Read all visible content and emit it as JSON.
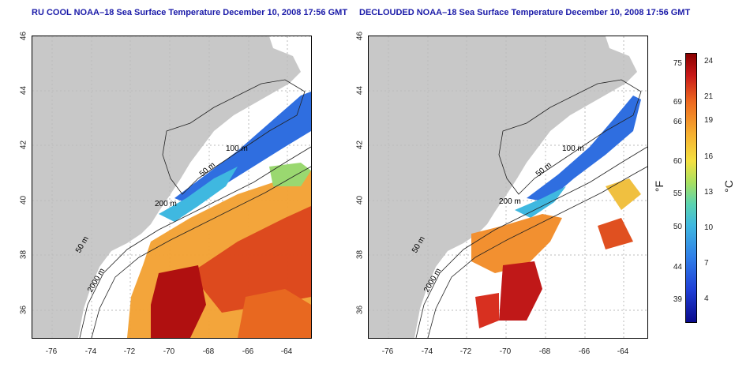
{
  "left_map": {
    "title": "RU COOL NOAA–18 Sea Surface Temperature December 10, 2008 17:56 GMT"
  },
  "right_map": {
    "title": "DECLOUDED NOAA–18 Sea Surface Temperature December 10, 2008 17:56 GMT"
  },
  "axes": {
    "lat_ticks": [
      "46",
      "44",
      "42",
      "40",
      "38",
      "36"
    ],
    "lon_ticks": [
      "-76",
      "-74",
      "-72",
      "-70",
      "-68",
      "-66",
      "-64"
    ]
  },
  "contours": {
    "c200": "200 m",
    "c100": "100 m",
    "c50a": "50 m",
    "c50b": "50 m",
    "c2000": "2000 m"
  },
  "colorbar": {
    "fahrenheit_ticks": [
      "75",
      "69",
      "66",
      "60",
      "55",
      "50",
      "44",
      "39"
    ],
    "celsius_ticks": [
      "24",
      "21",
      "19",
      "16",
      "13",
      "10",
      "7",
      "4"
    ],
    "unit_f": "°F",
    "unit_c": "°C"
  },
  "colors": {
    "land": "#c8c8c8",
    "title": "#1a1aa8"
  }
}
